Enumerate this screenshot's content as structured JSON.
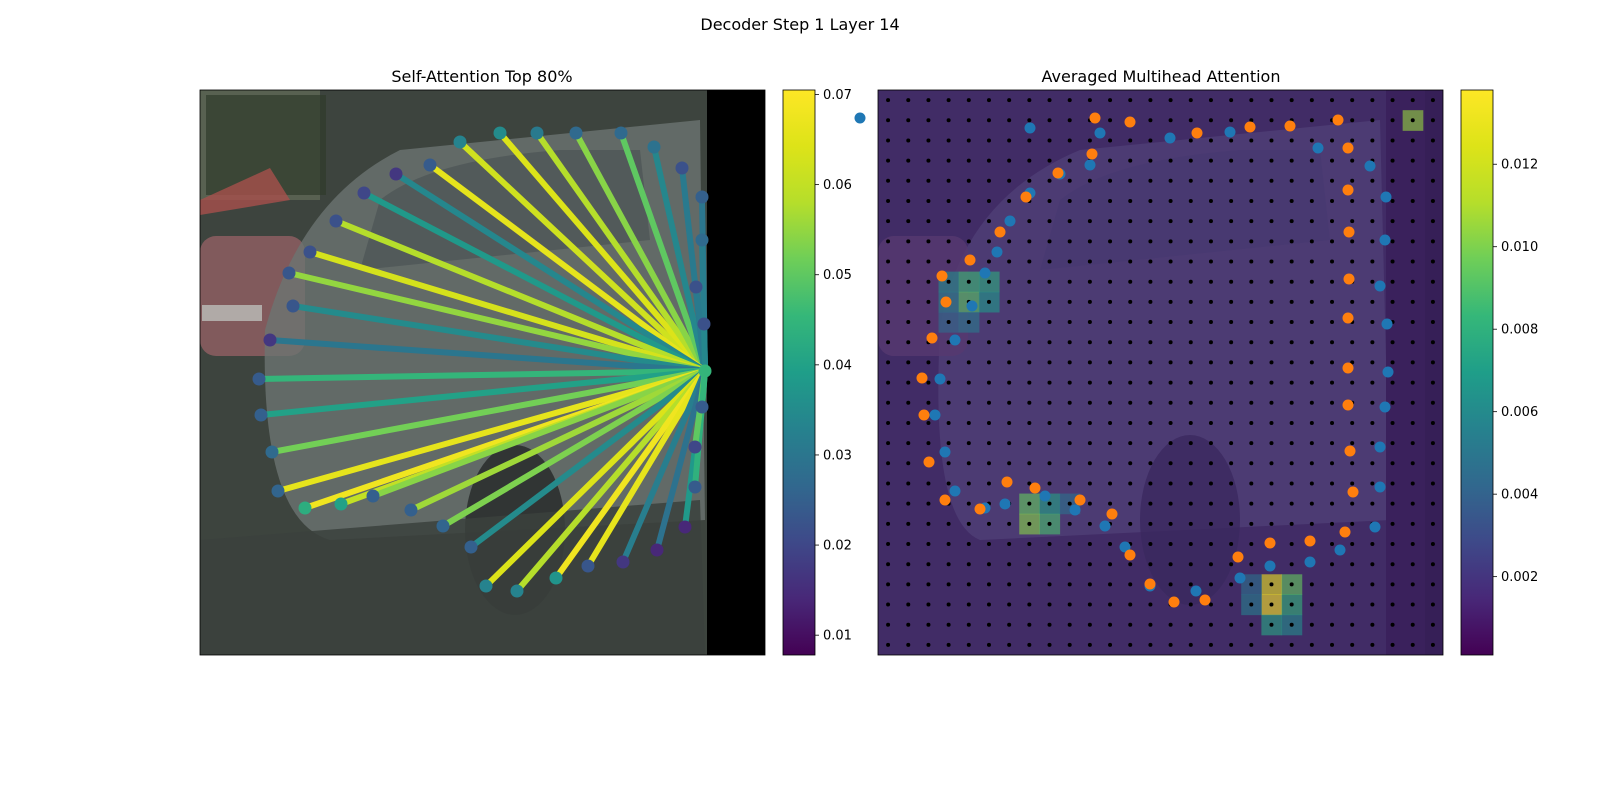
{
  "figure": {
    "title": "Decoder Step 1 Layer 14"
  },
  "chart_data": [
    {
      "type": "scatter",
      "title": "Self-Attention Top 80%",
      "description_of_marks": "points on contour with lines to query point colored by attention weight",
      "colorbar": {
        "colormap": "viridis",
        "range": [
          0.0078,
          0.0705
        ],
        "ticks": [
          "0.01",
          "0.02",
          "0.03",
          "0.04",
          "0.05",
          "0.06",
          "0.07"
        ],
        "tick_values": [
          0.01,
          0.02,
          0.03,
          0.04,
          0.05,
          0.06,
          0.07
        ]
      },
      "query_point": {
        "x": 705,
        "y": 371,
        "weight": 0.045
      },
      "points": [
        {
          "x": 460,
          "y": 142,
          "w": 0.033,
          "lw": 0.062
        },
        {
          "x": 500,
          "y": 133,
          "w": 0.035,
          "lw": 0.064
        },
        {
          "x": 537,
          "y": 133,
          "w": 0.031,
          "lw": 0.058
        },
        {
          "x": 576,
          "y": 133,
          "w": 0.027,
          "lw": 0.054
        },
        {
          "x": 621,
          "y": 133,
          "w": 0.027,
          "lw": 0.05
        },
        {
          "x": 654,
          "y": 147,
          "w": 0.029,
          "lw": 0.034
        },
        {
          "x": 682,
          "y": 168,
          "w": 0.022,
          "lw": 0.031
        },
        {
          "x": 702,
          "y": 197,
          "w": 0.025,
          "lw": 0.03
        },
        {
          "x": 702,
          "y": 240,
          "w": 0.027,
          "lw": 0.032
        },
        {
          "x": 696,
          "y": 287,
          "w": 0.022,
          "lw": 0.031
        },
        {
          "x": 704,
          "y": 324,
          "w": 0.022,
          "lw": 0.034
        },
        {
          "x": 430,
          "y": 165,
          "w": 0.024,
          "lw": 0.066
        },
        {
          "x": 396,
          "y": 174,
          "w": 0.017,
          "lw": 0.034
        },
        {
          "x": 364,
          "y": 193,
          "w": 0.02,
          "lw": 0.038
        },
        {
          "x": 336,
          "y": 221,
          "w": 0.022,
          "lw": 0.058
        },
        {
          "x": 310,
          "y": 252,
          "w": 0.022,
          "lw": 0.063
        },
        {
          "x": 289,
          "y": 273,
          "w": 0.023,
          "lw": 0.055
        },
        {
          "x": 293,
          "y": 306,
          "w": 0.023,
          "lw": 0.035
        },
        {
          "x": 270,
          "y": 340,
          "w": 0.017,
          "lw": 0.03
        },
        {
          "x": 259,
          "y": 379,
          "w": 0.024,
          "lw": 0.045
        },
        {
          "x": 261,
          "y": 415,
          "w": 0.025,
          "lw": 0.04
        },
        {
          "x": 272,
          "y": 452,
          "w": 0.027,
          "lw": 0.052
        },
        {
          "x": 278,
          "y": 491,
          "w": 0.026,
          "lw": 0.066
        },
        {
          "x": 305,
          "y": 508,
          "w": 0.043,
          "lw": 0.068
        },
        {
          "x": 341,
          "y": 504,
          "w": 0.04,
          "lw": 0.06
        },
        {
          "x": 373,
          "y": 496,
          "w": 0.025,
          "lw": 0.054
        },
        {
          "x": 411,
          "y": 510,
          "w": 0.025,
          "lw": 0.056
        },
        {
          "x": 443,
          "y": 526,
          "w": 0.026,
          "lw": 0.053
        },
        {
          "x": 471,
          "y": 547,
          "w": 0.025,
          "lw": 0.035
        },
        {
          "x": 486,
          "y": 586,
          "w": 0.033,
          "lw": 0.064
        },
        {
          "x": 517,
          "y": 591,
          "w": 0.033,
          "lw": 0.058
        },
        {
          "x": 556,
          "y": 578,
          "w": 0.037,
          "lw": 0.068
        },
        {
          "x": 588,
          "y": 566,
          "w": 0.023,
          "lw": 0.066
        },
        {
          "x": 623,
          "y": 562,
          "w": 0.017,
          "lw": 0.032
        },
        {
          "x": 657,
          "y": 550,
          "w": 0.014,
          "lw": 0.029
        },
        {
          "x": 685,
          "y": 527,
          "w": 0.014,
          "lw": 0.038
        },
        {
          "x": 695,
          "y": 487,
          "w": 0.024,
          "lw": 0.044
        },
        {
          "x": 695,
          "y": 447,
          "w": 0.02,
          "lw": 0.05
        },
        {
          "x": 702,
          "y": 407,
          "w": 0.024,
          "lw": 0.045
        }
      ]
    },
    {
      "type": "heatmap",
      "title": "Averaged Multihead Attention",
      "colorbar": {
        "colormap": "viridis",
        "range": [
          0.0001,
          0.0138
        ],
        "ticks": [
          "0.002",
          "0.004",
          "0.006",
          "0.008",
          "0.010",
          "0.012"
        ],
        "tick_values": [
          0.002,
          0.004,
          0.006,
          0.008,
          0.01,
          0.012
        ]
      },
      "grid_size": 28,
      "hot_cells": [
        {
          "col": 26,
          "row": 1,
          "v": 0.0105
        },
        {
          "col": 3,
          "row": 9,
          "v": 0.0062
        },
        {
          "col": 4,
          "row": 9,
          "v": 0.0085
        },
        {
          "col": 5,
          "row": 9,
          "v": 0.0078
        },
        {
          "col": 3,
          "row": 10,
          "v": 0.0058
        },
        {
          "col": 4,
          "row": 10,
          "v": 0.0092
        },
        {
          "col": 5,
          "row": 10,
          "v": 0.0068
        },
        {
          "col": 3,
          "row": 11,
          "v": 0.0045
        },
        {
          "col": 4,
          "row": 11,
          "v": 0.0052
        },
        {
          "col": 7,
          "row": 20,
          "v": 0.0095
        },
        {
          "col": 8,
          "row": 20,
          "v": 0.0072
        },
        {
          "col": 7,
          "row": 21,
          "v": 0.0102
        },
        {
          "col": 8,
          "row": 21,
          "v": 0.0088
        },
        {
          "col": 9,
          "row": 20,
          "v": 0.0048
        },
        {
          "col": 19,
          "row": 24,
          "v": 0.0132
        },
        {
          "col": 20,
          "row": 24,
          "v": 0.0095
        },
        {
          "col": 19,
          "row": 25,
          "v": 0.0138
        },
        {
          "col": 20,
          "row": 25,
          "v": 0.0082
        },
        {
          "col": 19,
          "row": 26,
          "v": 0.0075
        },
        {
          "col": 18,
          "row": 25,
          "v": 0.0055
        },
        {
          "col": 18,
          "row": 24,
          "v": 0.0048
        },
        {
          "col": 20,
          "row": 26,
          "v": 0.0062
        }
      ],
      "series": [
        {
          "color": "#1f77b4",
          "points": [
            [
              860,
              118
            ],
            [
              1030,
              128
            ],
            [
              1100,
              133
            ],
            [
              1170,
              138
            ],
            [
              1230,
              132
            ],
            [
              1318,
              148
            ],
            [
              1370,
              166
            ],
            [
              1386,
              197
            ],
            [
              1385,
              240
            ],
            [
              1380,
              286
            ],
            [
              1387,
              324
            ],
            [
              1388,
              372
            ],
            [
              1385,
              407
            ],
            [
              1380,
              447
            ],
            [
              1380,
              487
            ],
            [
              1375,
              527
            ],
            [
              1340,
              550
            ],
            [
              1310,
              562
            ],
            [
              1270,
              566
            ],
            [
              1240,
              578
            ],
            [
              1196,
              591
            ],
            [
              1150,
              586
            ],
            [
              1125,
              547
            ],
            [
              1105,
              526
            ],
            [
              1075,
              510
            ],
            [
              1045,
              496
            ],
            [
              1005,
              504
            ],
            [
              985,
              508
            ],
            [
              955,
              491
            ],
            [
              945,
              452
            ],
            [
              935,
              415
            ],
            [
              940,
              379
            ],
            [
              955,
              340
            ],
            [
              972,
              306
            ],
            [
              985,
              273
            ],
            [
              997,
              252
            ],
            [
              1010,
              221
            ],
            [
              1030,
              193
            ],
            [
              1060,
              174
            ],
            [
              1090,
              165
            ]
          ],
          "marker": "circle"
        },
        {
          "color": "#ff7f0e",
          "points": [
            [
              1095,
              118
            ],
            [
              1130,
              122
            ],
            [
              1197,
              133
            ],
            [
              1250,
              127
            ],
            [
              1290,
              126
            ],
            [
              1338,
              120
            ],
            [
              1348,
              148
            ],
            [
              1348,
              190
            ],
            [
              1349,
              232
            ],
            [
              1349,
              279
            ],
            [
              1348,
              318
            ],
            [
              1348,
              368
            ],
            [
              1348,
              405
            ],
            [
              1350,
              451
            ],
            [
              1353,
              492
            ],
            [
              1345,
              532
            ],
            [
              1310,
              541
            ],
            [
              1270,
              543
            ],
            [
              1238,
              557
            ],
            [
              1205,
              600
            ],
            [
              1174,
              602
            ],
            [
              1150,
              584
            ],
            [
              1130,
              555
            ],
            [
              1112,
              514
            ],
            [
              1080,
              500
            ],
            [
              1035,
              488
            ],
            [
              1007,
              482
            ],
            [
              980,
              509
            ],
            [
              945,
              500
            ],
            [
              929,
              462
            ],
            [
              924,
              415
            ],
            [
              922,
              378
            ],
            [
              932,
              338
            ],
            [
              946,
              302
            ],
            [
              942,
              276
            ],
            [
              970,
              260
            ],
            [
              1000,
              232
            ],
            [
              1026,
              197
            ],
            [
              1058,
              173
            ],
            [
              1092,
              154
            ]
          ],
          "marker": "circle"
        }
      ]
    }
  ]
}
